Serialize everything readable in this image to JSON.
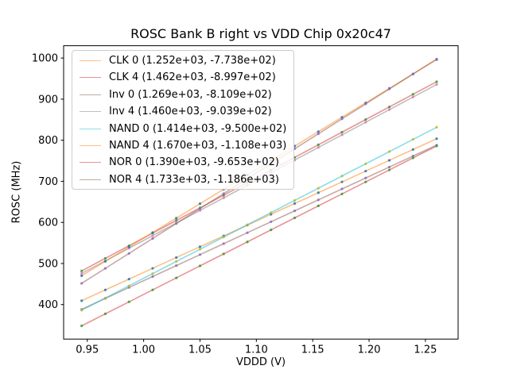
{
  "figure": {
    "title": "ROSC Bank B right vs VDD Chip 0x20c47",
    "xlabel": "VDDD (V)",
    "ylabel": "ROSC (MHz)"
  },
  "chart_data": {
    "type": "scatter",
    "title": "ROSC Bank B right vs VDD Chip 0x20c47",
    "xlabel": "VDDD (V)",
    "ylabel": "ROSC (MHz)",
    "grid": false,
    "legend_position": "upper left",
    "xlim": [
      0.929,
      1.279
    ],
    "ylim": [
      316,
      1030
    ],
    "xtick_values": [
      0.95,
      1.0,
      1.05,
      1.1,
      1.15,
      1.2,
      1.25
    ],
    "xtick_labels": [
      "0.95",
      "1.00",
      "1.05",
      "1.10",
      "1.15",
      "1.20",
      "1.25"
    ],
    "ytick_values": [
      400,
      500,
      600,
      700,
      800,
      900,
      1000
    ],
    "ytick_labels": [
      "400",
      "500",
      "600",
      "700",
      "800",
      "900",
      "1000"
    ],
    "x_values": [
      0.945,
      0.966,
      0.987,
      1.008,
      1.029,
      1.05,
      1.071,
      1.092,
      1.113,
      1.134,
      1.155,
      1.176,
      1.197,
      1.218,
      1.239,
      1.26
    ],
    "line_opacity": 0.5,
    "marker_opacity": 0.85,
    "series": [
      {
        "name": "CLK 0",
        "legend_label": "CLK 0 (1.252e+03, -7.738e+02)",
        "fit_slope": 1252.0,
        "fit_intercept": -773.8,
        "line_color": "#ff7f0e",
        "marker_color": "#1f77b4"
      },
      {
        "name": "CLK 4",
        "legend_label": "CLK 4 (1.462e+03, -8.997e+02)",
        "fit_slope": 1462.0,
        "fit_intercept": -899.7,
        "line_color": "#d62728",
        "marker_color": "#2ca02c"
      },
      {
        "name": "Inv 0",
        "legend_label": "Inv 0 (1.269e+03, -8.109e+02)",
        "fit_slope": 1269.0,
        "fit_intercept": -810.9,
        "line_color": "#8c564b",
        "marker_color": "#9467bd"
      },
      {
        "name": "Inv 4",
        "legend_label": "Inv 4 (1.460e+03, -9.039e+02)",
        "fit_slope": 1460.0,
        "fit_intercept": -903.9,
        "line_color": "#7f7f7f",
        "marker_color": "#e377c2"
      },
      {
        "name": "NAND 0",
        "legend_label": "NAND 0 (1.414e+03, -9.500e+02)",
        "fit_slope": 1414.0,
        "fit_intercept": -950.0,
        "line_color": "#17becf",
        "marker_color": "#bcbd22"
      },
      {
        "name": "NAND 4",
        "legend_label": "NAND 4 (1.670e+03, -1.108e+03)",
        "fit_slope": 1670.0,
        "fit_intercept": -1108.0,
        "line_color": "#ff7f0e",
        "marker_color": "#1f77b4"
      },
      {
        "name": "NOR 0",
        "legend_label": "NOR 0 (1.390e+03, -9.653e+02)",
        "fit_slope": 1390.0,
        "fit_intercept": -965.3,
        "line_color": "#d62728",
        "marker_color": "#2ca02c"
      },
      {
        "name": "NOR 4",
        "legend_label": "NOR 4 (1.733e+03, -1.186e+03)",
        "fit_slope": 1733.0,
        "fit_intercept": -1186.0,
        "line_color": "#8c564b",
        "marker_color": "#9467bd"
      }
    ]
  }
}
